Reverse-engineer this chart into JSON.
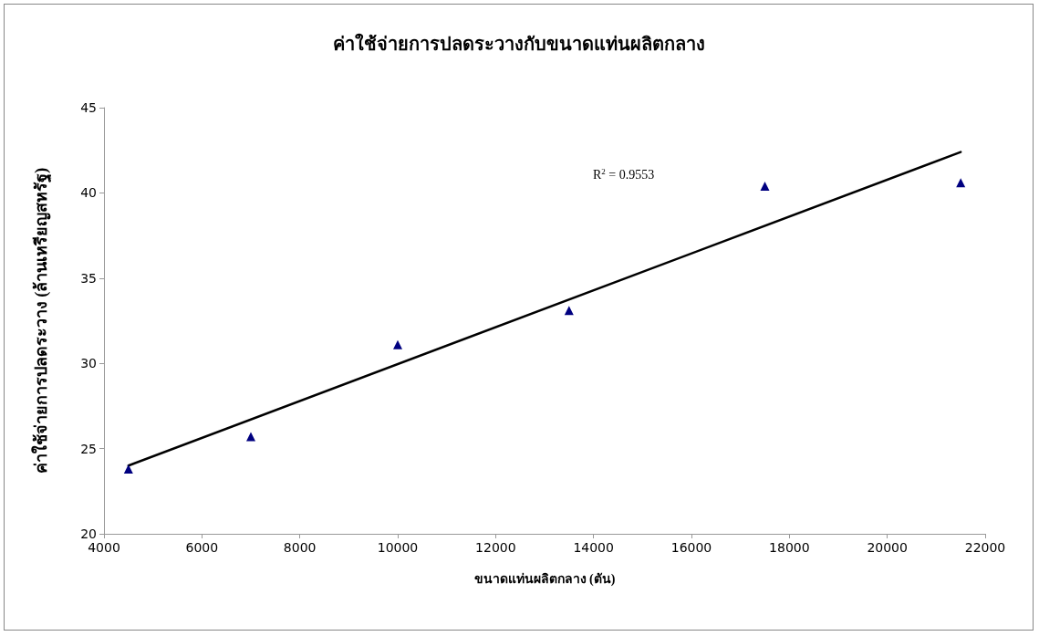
{
  "chart_data": {
    "type": "scatter",
    "title": "ค่าใช้จ่ายการปลดระวางกับขนาดแท่นผลิตกลาง",
    "xlabel": "ขนาดแท่นผลิตกลาง (ตัน)",
    "ylabel": "ค่าใช้จ่ายการปลดระวาง (ล้านเหรียญสหรัฐ)",
    "xlim": [
      4000,
      22000
    ],
    "xticks": [
      4000,
      6000,
      8000,
      10000,
      12000,
      14000,
      16000,
      18000,
      20000,
      22000
    ],
    "ylim": [
      20,
      45
    ],
    "yticks": [
      20,
      25,
      30,
      35,
      40,
      45
    ],
    "grid": false,
    "marker": "triangle",
    "series": [
      {
        "color": "#000080",
        "x": [
          4500,
          7000,
          10000,
          13500,
          17500,
          21500
        ],
        "values": [
          23.8,
          25.7,
          31.1,
          33.1,
          40.4,
          40.6
        ]
      },
      {
        "type": "line",
        "color": "#000000",
        "marker": "none",
        "line_style": "solid",
        "x": [
          4500,
          21500
        ],
        "values": [
          24.0,
          42.4
        ]
      }
    ],
    "annotations": [
      "R$^{2}$ = 0.9553"
    ]
  }
}
